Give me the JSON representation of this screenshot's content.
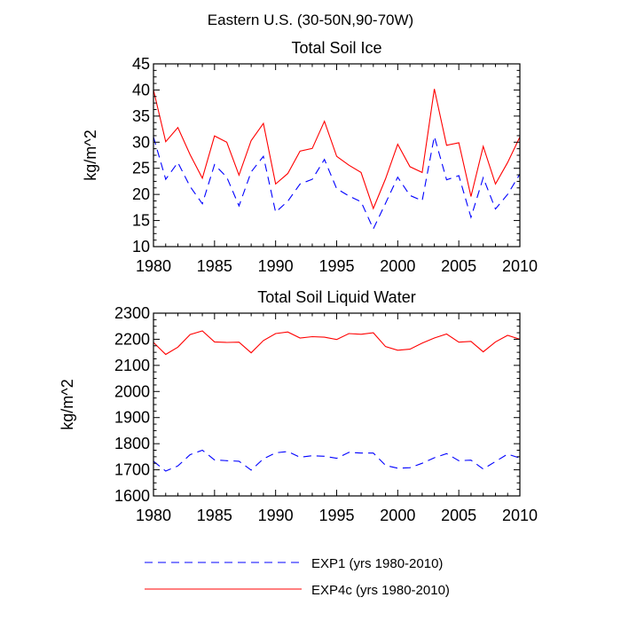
{
  "figure": {
    "suptitle": "Eastern U.S. (30-50N,90-70W)"
  },
  "colors": {
    "exp1": "#0000ff",
    "exp4c": "#ff0000",
    "axis": "#000000"
  },
  "legend": {
    "placement": "bottom",
    "entries": [
      {
        "label": "EXP1 (yrs 1980-2010)",
        "color": "#0000ff",
        "style": "dashed"
      },
      {
        "label": "EXP4c (yrs 1980-2010)",
        "color": "#ff0000",
        "style": "solid"
      }
    ]
  },
  "chart_data": [
    {
      "type": "line",
      "title": "Total Soil Ice",
      "xlabel": "",
      "ylabel": "kg/m^2",
      "xlim": [
        1980,
        2010
      ],
      "ylim": [
        10,
        45
      ],
      "xticks": [
        1980,
        1985,
        1990,
        1995,
        2000,
        2005,
        2010
      ],
      "yticks": [
        10,
        15,
        20,
        25,
        30,
        35,
        40,
        45
      ],
      "grid": false,
      "x": [
        1980,
        1981,
        1982,
        1983,
        1984,
        1985,
        1986,
        1987,
        1988,
        1989,
        1990,
        1991,
        1992,
        1993,
        1994,
        1995,
        1996,
        1997,
        1998,
        1999,
        2000,
        2001,
        2002,
        2003,
        2004,
        2005,
        2006,
        2007,
        2008,
        2009,
        2010
      ],
      "series": [
        {
          "name": "EXP4c (yrs 1980-2010)",
          "color": "#ff0000",
          "style": "solid",
          "values": [
            40.0,
            30.1,
            32.8,
            27.6,
            23.1,
            31.2,
            30.0,
            23.7,
            30.3,
            33.6,
            22.0,
            24.0,
            28.3,
            28.8,
            34.0,
            27.3,
            25.6,
            24.2,
            17.3,
            23.0,
            29.6,
            25.3,
            24.2,
            40.2,
            29.4,
            29.9,
            19.6,
            29.2,
            22.0,
            26.1,
            31.0
          ]
        },
        {
          "name": "EXP1 (yrs 1980-2010)",
          "color": "#0000ff",
          "style": "dashed",
          "values": [
            31.0,
            22.9,
            26.1,
            21.5,
            18.2,
            25.7,
            23.3,
            17.8,
            24.3,
            27.3,
            16.6,
            18.7,
            22.0,
            22.9,
            26.7,
            21.1,
            19.7,
            18.6,
            13.4,
            18.3,
            23.3,
            19.8,
            18.8,
            31.1,
            22.8,
            23.6,
            15.6,
            23.2,
            17.2,
            20.0,
            23.9
          ]
        }
      ]
    },
    {
      "type": "line",
      "title": "Total Soil Liquid Water",
      "xlabel": "",
      "ylabel": "kg/m^2",
      "xlim": [
        1980,
        2010
      ],
      "ylim": [
        1600,
        2300
      ],
      "xticks": [
        1980,
        1985,
        1990,
        1995,
        2000,
        2005,
        2010
      ],
      "yticks": [
        1600,
        1700,
        1800,
        1900,
        2000,
        2100,
        2200,
        2300
      ],
      "grid": false,
      "x": [
        1980,
        1981,
        1982,
        1983,
        1984,
        1985,
        1986,
        1987,
        1988,
        1989,
        1990,
        1991,
        1992,
        1993,
        1994,
        1995,
        1996,
        1997,
        1998,
        1999,
        2000,
        2001,
        2002,
        2003,
        2004,
        2005,
        2006,
        2007,
        2008,
        2009,
        2010
      ],
      "series": [
        {
          "name": "EXP4c (yrs 1980-2010)",
          "color": "#ff0000",
          "style": "solid",
          "values": [
            2188,
            2142,
            2170,
            2218,
            2232,
            2190,
            2188,
            2189,
            2148,
            2195,
            2222,
            2228,
            2205,
            2210,
            2208,
            2199,
            2222,
            2219,
            2225,
            2172,
            2158,
            2162,
            2185,
            2205,
            2220,
            2189,
            2192,
            2152,
            2190,
            2215,
            2200
          ]
        },
        {
          "name": "EXP1 (yrs 1980-2010)",
          "color": "#0000ff",
          "style": "dashed",
          "values": [
            1733,
            1695,
            1715,
            1758,
            1775,
            1738,
            1735,
            1733,
            1699,
            1742,
            1765,
            1770,
            1748,
            1754,
            1752,
            1744,
            1767,
            1764,
            1764,
            1717,
            1706,
            1708,
            1725,
            1746,
            1762,
            1735,
            1737,
            1703,
            1732,
            1760,
            1745
          ]
        }
      ]
    }
  ]
}
